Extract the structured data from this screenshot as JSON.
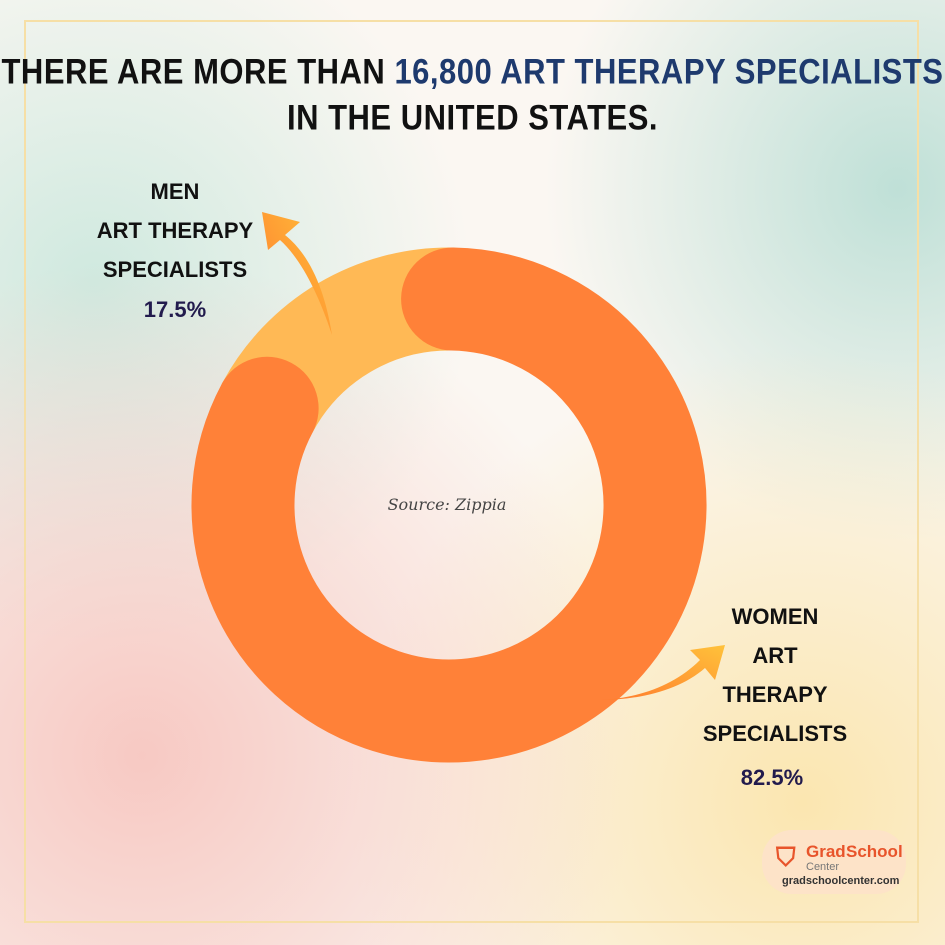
{
  "chart_data": {
    "type": "donut",
    "title": [
      "THERE ARE MORE THAN",
      "16,800 ART THERAPY SPECIALISTS",
      "IN THE UNITED STATES."
    ],
    "categories": [
      "MEN\nART THERAPY\nSPECIALISTS",
      "WOMEN\nART\nTHERAPY\nSPECIALISTS"
    ],
    "values": [
      17.5,
      82.5
    ],
    "value_labels": [
      "17.5%",
      "82.5%"
    ],
    "colors": [
      "#FFB955",
      "#FF8138"
    ],
    "source": "Source: Zippia"
  },
  "logo": {
    "brand_1": "Grad",
    "brand_2": "School",
    "brand_3": "Center",
    "url": "gradschoolcenter.com"
  }
}
